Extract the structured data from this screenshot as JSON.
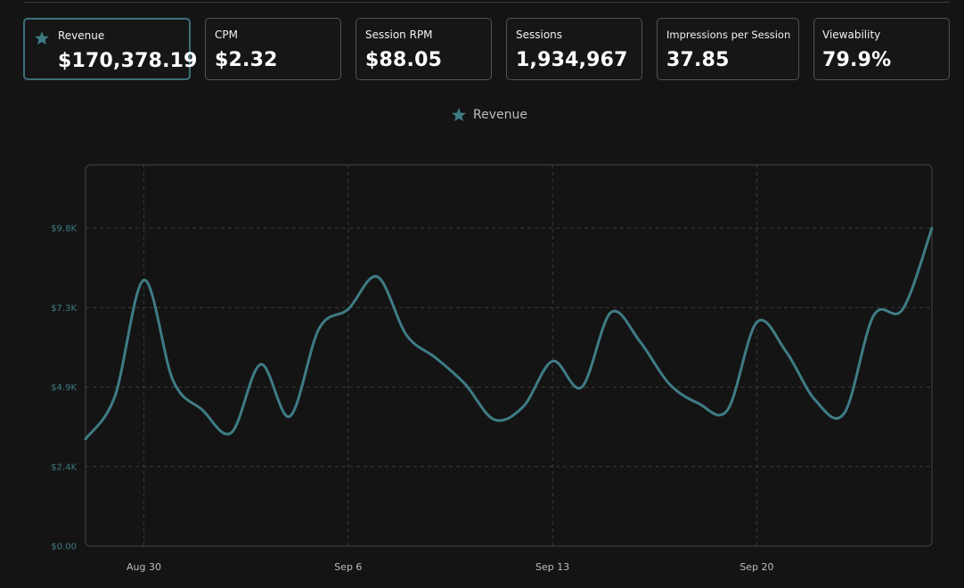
{
  "metrics": [
    {
      "label": "Revenue",
      "value": "$170,378.19",
      "active": true
    },
    {
      "label": "CPM",
      "value": "$2.32",
      "active": false
    },
    {
      "label": "Session RPM",
      "value": "$88.05",
      "active": false
    },
    {
      "label": "Sessions",
      "value": "1,934,967",
      "active": false
    },
    {
      "label": "Impressions per Session",
      "value": "37.85",
      "active": false
    },
    {
      "label": "Viewability",
      "value": "79.9%",
      "active": false
    }
  ],
  "colors": {
    "accent": "#3e7b83",
    "line": "#3f7c85",
    "background": "#141414",
    "card_border": "#525252",
    "grid": "#3a3a3a"
  },
  "chart_data": {
    "type": "line",
    "series": [
      {
        "name": "Revenue",
        "x": [
          "Aug 28",
          "Aug 29",
          "Aug 30",
          "Aug 31",
          "Sep 1",
          "Sep 2",
          "Sep 3",
          "Sep 4",
          "Sep 5",
          "Sep 6",
          "Sep 7",
          "Sep 8",
          "Sep 9",
          "Sep 10",
          "Sep 11",
          "Sep 12",
          "Sep 13",
          "Sep 14",
          "Sep 15",
          "Sep 16",
          "Sep 17",
          "Sep 18",
          "Sep 19",
          "Sep 20",
          "Sep 21",
          "Sep 22",
          "Sep 23",
          "Sep 24",
          "Sep 25",
          "Sep 26"
        ],
        "values": [
          3300,
          4600,
          8200,
          5100,
          4200,
          3500,
          5600,
          4000,
          6700,
          7300,
          8300,
          6500,
          5800,
          5000,
          3900,
          4300,
          5700,
          4900,
          7200,
          6300,
          5000,
          4400,
          4200,
          6900,
          6000,
          4500,
          4100,
          7100,
          7300,
          9800
        ]
      }
    ],
    "yticks": [
      "$0.00",
      "$2.4K",
      "$4.9K",
      "$7.3K",
      "$9.8K"
    ],
    "ytick_values": [
      0,
      2450,
      4900,
      7350,
      9800
    ],
    "xticks": [
      "Aug 30",
      "Sep 6",
      "Sep 13",
      "Sep 20"
    ],
    "xtick_indices": [
      2,
      9,
      16,
      23
    ],
    "ylim": [
      0,
      11750
    ],
    "grid": true,
    "legend_position": "top-center"
  }
}
